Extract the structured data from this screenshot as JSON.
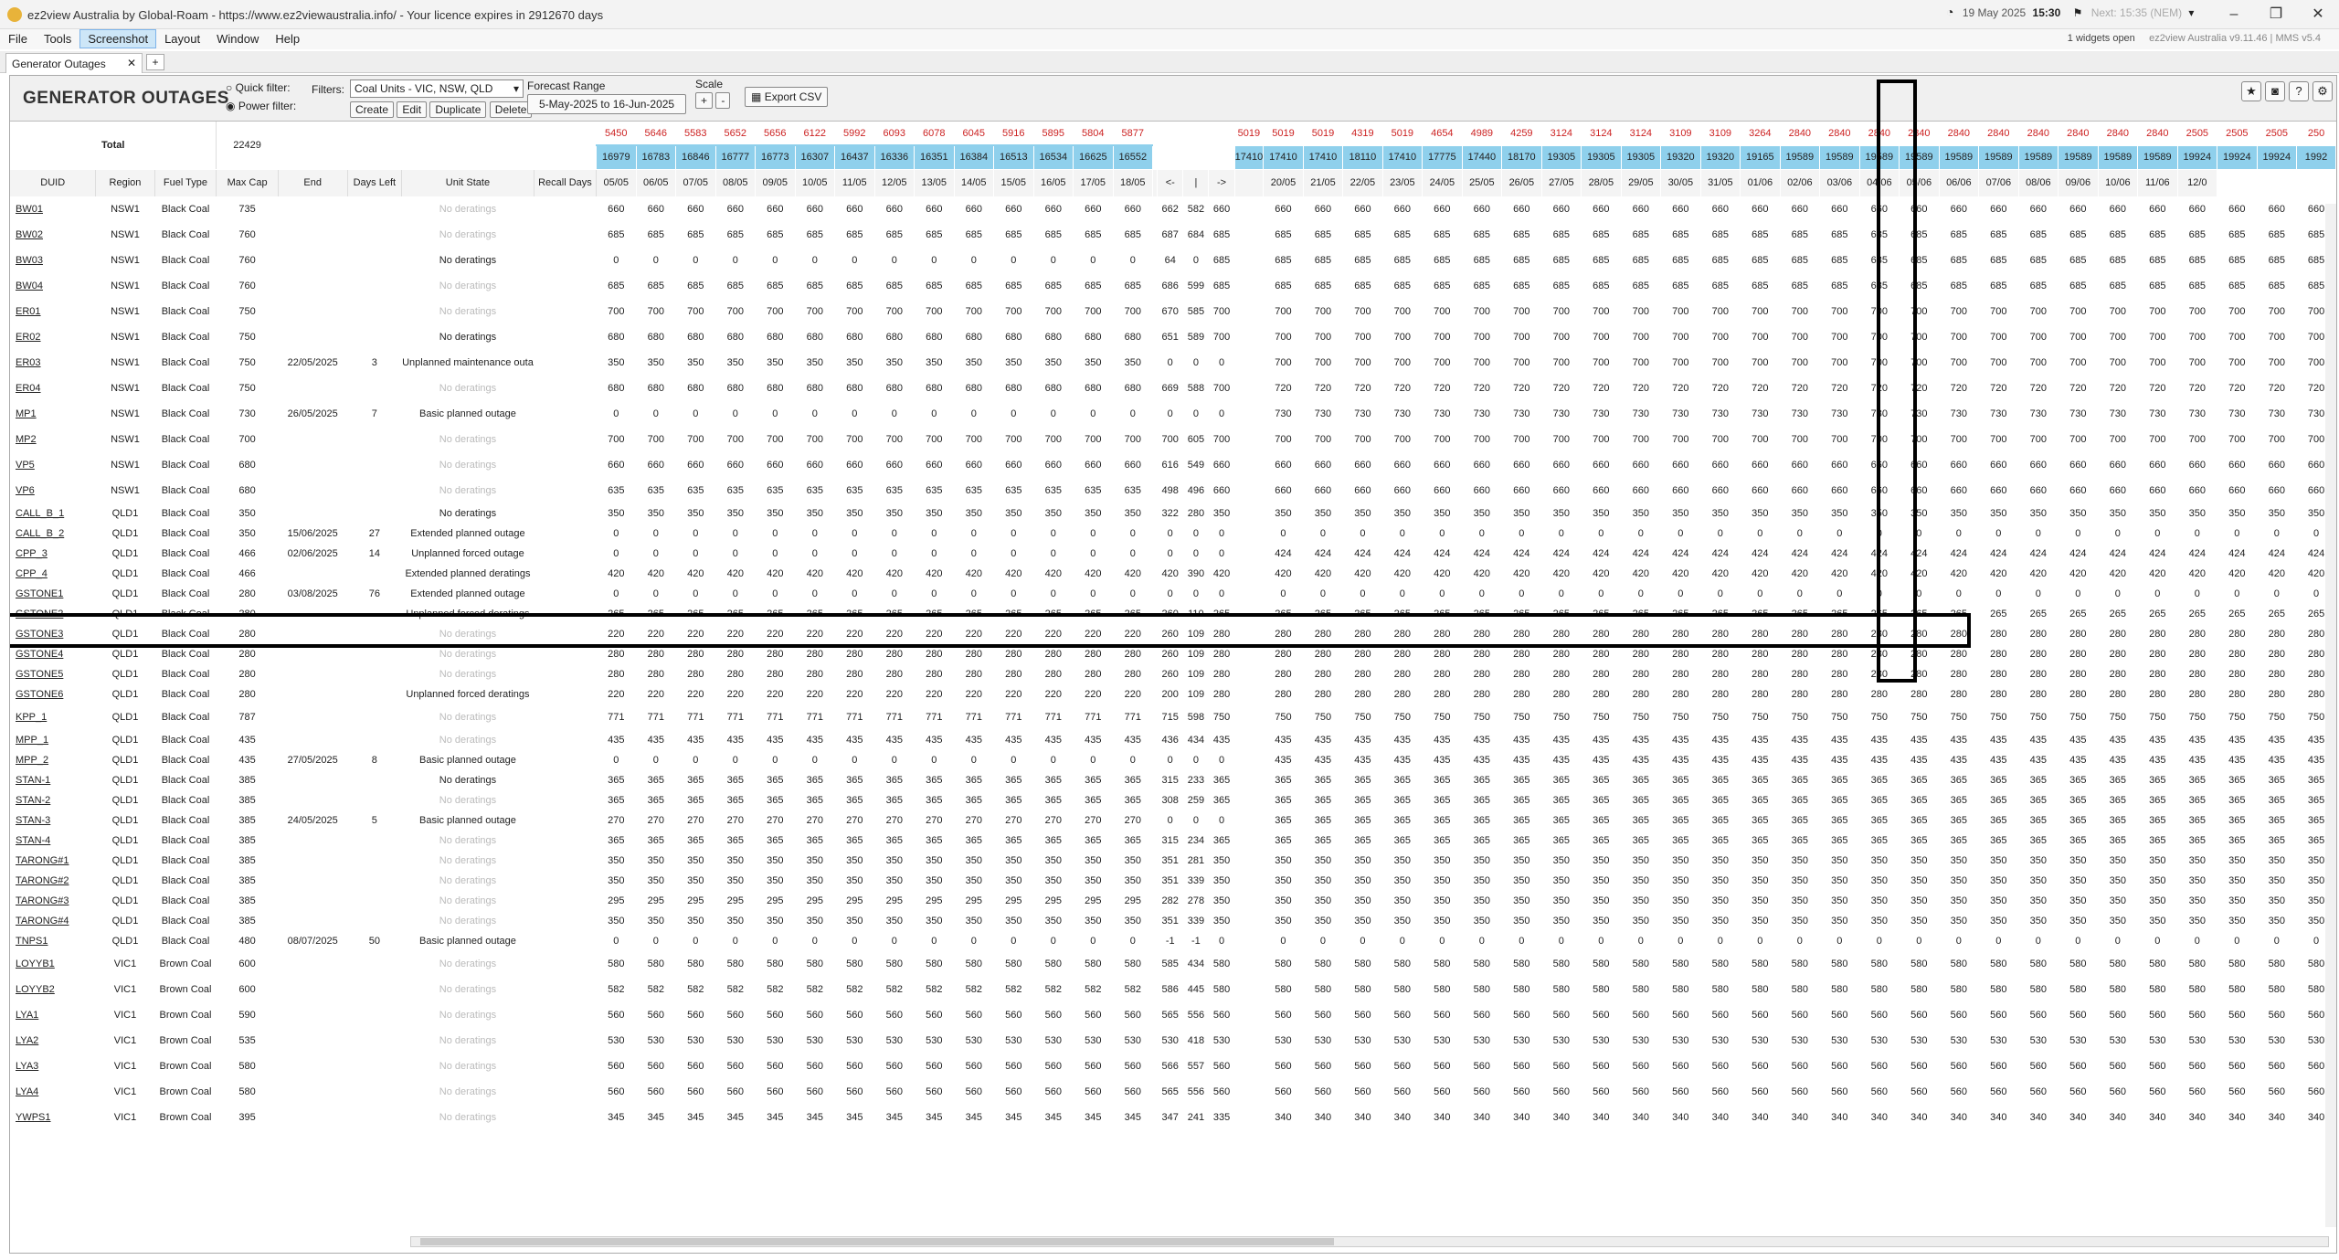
{
  "app": {
    "title": "ez2view Australia by Global-Roam - https://www.ez2viewaustralia.info/ - Your licence expires in 2912670 days",
    "clock_date": "19 May 2025",
    "clock_time": "15:30",
    "clock_next": "Next: 15:35 (NEM)",
    "widgets": "1 widgets open",
    "version": "ez2view Australia v9.11.46 | MMS v5.4"
  },
  "menu": [
    "File",
    "Tools",
    "Screenshot",
    "Layout",
    "Window",
    "Help"
  ],
  "tab": {
    "label": "Generator Outages",
    "close": "✕",
    "add": "+"
  },
  "toolbar": {
    "page_title": "GENERATOR OUTAGES",
    "quick_filter": "Quick filter:",
    "power_filter": "Power filter:",
    "filters_label": "Filters:",
    "filter_value": "Coal Units - VIC, NSW, QLD",
    "create": "Create",
    "edit": "Edit",
    "duplicate": "Duplicate",
    "delete": "Delete",
    "forecast_range_label": "Forecast Range",
    "forecast_range": "5-May-2025 to 16-Jun-2025",
    "scale_label": "Scale",
    "scale_plus": "+",
    "scale_minus": "-",
    "export": "Export CSV"
  },
  "colors": {
    "dark_green": "#37a04d",
    "light_green": "#9bd69d",
    "red": "#ee1c1c",
    "grey": "#d9d9d9",
    "teal": "#3b9ea2",
    "header_blue": "#8fd0ec"
  },
  "columns": [
    "DUID",
    "Region",
    "Fuel Type",
    "Max Cap",
    "End",
    "Days Left",
    "Unit State",
    "Recall Days"
  ],
  "total": {
    "label": "Total",
    "maxcap": "22429"
  },
  "total_top_a": [
    "5450",
    "5646",
    "5583",
    "5652",
    "5656",
    "6122",
    "5992",
    "6093",
    "6078",
    "6045",
    "5916",
    "5895",
    "5804",
    "5877"
  ],
  "total_top_b": [
    "",
    "",
    "",
    "5019"
  ],
  "total_top_c": [
    "5019",
    "5019",
    "4319",
    "5019",
    "4654",
    "4989",
    "4259",
    "3124",
    "3124",
    "3124",
    "3109",
    "3109",
    "3264",
    "2840",
    "2840",
    "2840",
    "2840",
    "2840",
    "2840",
    "2840",
    "2840",
    "2840",
    "2840",
    "2505",
    "2505",
    "2505",
    "250"
  ],
  "total_bot_a": [
    "16979",
    "16783",
    "16846",
    "16777",
    "16773",
    "16307",
    "16437",
    "16336",
    "16351",
    "16384",
    "16513",
    "16534",
    "16625",
    "16552"
  ],
  "total_bot_b": [
    "",
    "",
    "",
    "17410"
  ],
  "total_bot_c": [
    "17410",
    "17410",
    "18110",
    "17410",
    "17775",
    "17440",
    "18170",
    "19305",
    "19305",
    "19305",
    "19320",
    "19320",
    "19165",
    "19589",
    "19589",
    "19589",
    "19589",
    "19589",
    "19589",
    "19589",
    "19589",
    "19589",
    "19589",
    "19924",
    "19924",
    "19924",
    "1992"
  ],
  "dates_a": [
    "05/05",
    "06/05",
    "07/05",
    "08/05",
    "09/05",
    "10/05",
    "11/05",
    "12/05",
    "13/05",
    "14/05",
    "15/05",
    "16/05",
    "17/05",
    "18/05"
  ],
  "dates_b": [
    "<-",
    "|",
    "->"
  ],
  "dates_c": [
    "20/05",
    "21/05",
    "22/05",
    "23/05",
    "24/05",
    "25/05",
    "26/05",
    "27/05",
    "28/05",
    "29/05",
    "30/05",
    "31/05",
    "01/06",
    "02/06",
    "03/06",
    "04/06",
    "05/06",
    "06/06",
    "07/06",
    "08/06",
    "09/06",
    "10/06",
    "11/06",
    "12/0"
  ],
  "units": [
    {
      "duid": "BW01",
      "region": "NSW1",
      "fuel": "Black Coal",
      "cap": "735",
      "end": "",
      "days": "",
      "state": "No deratings",
      "nd": true,
      "a": "660",
      "ap": "g",
      "b": [
        "662",
        "582",
        "660"
      ],
      "c": "660",
      "cp": "L"
    },
    {
      "duid": "BW02",
      "region": "NSW1",
      "fuel": "Black Coal",
      "cap": "760",
      "end": "",
      "days": "",
      "state": "No deratings",
      "nd": true,
      "a": "685",
      "ap": "g",
      "b": [
        "687",
        "684",
        "685"
      ],
      "c": "685",
      "cp": "L"
    },
    {
      "duid": "BW03",
      "region": "NSW1",
      "fuel": "Black Coal",
      "cap": "760",
      "end": "",
      "days": "",
      "state": "No deratings",
      "nd": false,
      "a": "0",
      "ap": "r",
      "b": [
        "64",
        "0",
        "685"
      ],
      "c": "685",
      "cp": "L"
    },
    {
      "duid": "BW04",
      "region": "NSW1",
      "fuel": "Black Coal",
      "cap": "760",
      "end": "",
      "days": "",
      "state": "No deratings",
      "nd": true,
      "a": "685",
      "ap": "g",
      "b": [
        "686",
        "599",
        "685"
      ],
      "c": "685",
      "cp": "L"
    },
    {
      "duid": "ER01",
      "region": "NSW1",
      "fuel": "Black Coal",
      "cap": "750",
      "end": "",
      "days": "",
      "state": "No deratings",
      "nd": true,
      "a": "700",
      "ap": "g",
      "b": [
        "670",
        "585",
        "700"
      ],
      "c": "700",
      "cp": "L"
    },
    {
      "duid": "ER02",
      "region": "NSW1",
      "fuel": "Black Coal",
      "cap": "750",
      "end": "",
      "days": "",
      "state": "No deratings",
      "nd": false,
      "a": "680",
      "ap": "g",
      "b": [
        "651",
        "589",
        "700"
      ],
      "c": "700",
      "cp": "L"
    },
    {
      "duid": "ER03",
      "region": "NSW1",
      "fuel": "Black Coal",
      "cap": "750",
      "end": "22/05/2025",
      "days": "3",
      "state": "Unplanned maintenance outa",
      "nd": false,
      "a": "350",
      "ap": "g",
      "b": [
        "0",
        "0",
        "0"
      ],
      "c": "700",
      "cp": "L"
    },
    {
      "duid": "ER04",
      "region": "NSW1",
      "fuel": "Black Coal",
      "cap": "750",
      "end": "",
      "days": "",
      "state": "No deratings",
      "nd": true,
      "a": "680",
      "ap": "g",
      "b": [
        "669",
        "588",
        "700"
      ],
      "c": "720",
      "cp": "L"
    },
    {
      "duid": "MP1",
      "region": "NSW1",
      "fuel": "Black Coal",
      "cap": "730",
      "end": "26/05/2025",
      "days": "7",
      "state": "Basic planned outage",
      "nd": false,
      "a": "0",
      "ap": "z",
      "b": [
        "0",
        "0",
        "0"
      ],
      "c": "730",
      "cp": "L"
    },
    {
      "duid": "MP2",
      "region": "NSW1",
      "fuel": "Black Coal",
      "cap": "700",
      "end": "",
      "days": "",
      "state": "No deratings",
      "nd": true,
      "a": "700",
      "ap": "g",
      "b": [
        "700",
        "605",
        "700"
      ],
      "c": "700",
      "cp": "L"
    },
    {
      "duid": "VP5",
      "region": "NSW1",
      "fuel": "Black Coal",
      "cap": "680",
      "end": "",
      "days": "",
      "state": "No deratings",
      "nd": true,
      "a": "660",
      "ap": "g",
      "b": [
        "616",
        "549",
        "660"
      ],
      "c": "660",
      "cp": "L"
    },
    {
      "duid": "VP6",
      "region": "NSW1",
      "fuel": "Black Coal",
      "cap": "680",
      "end": "",
      "days": "",
      "state": "No deratings",
      "nd": true,
      "a": "635",
      "ap": "g",
      "b": [
        "498",
        "496",
        "660"
      ],
      "c": "660",
      "cp": "L"
    },
    {
      "duid": "CALL_B_1",
      "region": "QLD1",
      "fuel": "Black Coal",
      "cap": "350",
      "end": "",
      "days": "",
      "state": "No deratings",
      "nd": false,
      "a": "350",
      "ap": "g",
      "b": [
        "322",
        "280",
        "350"
      ],
      "c": "350",
      "cp": "L"
    },
    {
      "duid": "CALL_B_2",
      "region": "QLD1",
      "fuel": "Black Coal",
      "cap": "350",
      "end": "15/06/2025",
      "days": "27",
      "state": "Extended planned outage",
      "nd": false,
      "a": "0",
      "ap": "z",
      "b": [
        "0",
        "0",
        "0"
      ],
      "c": "0",
      "cp": "z"
    },
    {
      "duid": "CPP_3",
      "region": "QLD1",
      "fuel": "Black Coal",
      "cap": "466",
      "end": "02/06/2025",
      "days": "14",
      "state": "Unplanned forced outage",
      "nd": false,
      "a": "0",
      "ap": "r",
      "b": [
        "0",
        "0",
        "0"
      ],
      "c": "424",
      "cp": "L"
    },
    {
      "duid": "CPP_4",
      "region": "QLD1",
      "fuel": "Black Coal",
      "cap": "466",
      "end": "",
      "days": "",
      "state": "Extended planned deratings",
      "nd": false,
      "a": "420",
      "ap": "g",
      "b": [
        "420",
        "390",
        "420"
      ],
      "c": "420",
      "cp": "L"
    },
    {
      "duid": "GSTONE1",
      "region": "QLD1",
      "fuel": "Black Coal",
      "cap": "280",
      "end": "03/08/2025",
      "days": "76",
      "state": "Extended planned outage",
      "nd": false,
      "a": "0",
      "ap": "z",
      "b": [
        "0",
        "0",
        "0"
      ],
      "c": "0",
      "cp": "z"
    },
    {
      "duid": "GSTONE2",
      "region": "QLD1",
      "fuel": "Black Coal",
      "cap": "280",
      "end": "",
      "days": "",
      "state": "Unplanned forced deratings",
      "nd": false,
      "a": "265",
      "ap": "g",
      "b": [
        "260",
        "110",
        "265"
      ],
      "c": "265",
      "cp": "L"
    },
    {
      "duid": "GSTONE3",
      "region": "QLD1",
      "fuel": "Black Coal",
      "cap": "280",
      "end": "",
      "days": "",
      "state": "No deratings",
      "nd": true,
      "a": "220",
      "ap": "g",
      "b": [
        "260",
        "109",
        "280"
      ],
      "c": "280",
      "cp": "L"
    },
    {
      "duid": "GSTONE4",
      "region": "QLD1",
      "fuel": "Black Coal",
      "cap": "280",
      "end": "",
      "days": "",
      "state": "No deratings",
      "nd": true,
      "a": "280",
      "ap": "g",
      "b": [
        "260",
        "109",
        "280"
      ],
      "c": "280",
      "cp": "L"
    },
    {
      "duid": "GSTONE5",
      "region": "QLD1",
      "fuel": "Black Coal",
      "cap": "280",
      "end": "",
      "days": "",
      "state": "No deratings",
      "nd": true,
      "a": "280",
      "ap": "g",
      "b": [
        "260",
        "109",
        "280"
      ],
      "c": "280",
      "cp": "L"
    },
    {
      "duid": "GSTONE6",
      "region": "QLD1",
      "fuel": "Black Coal",
      "cap": "280",
      "end": "",
      "days": "",
      "state": "Unplanned forced deratings",
      "nd": false,
      "a": "220",
      "ap": "g",
      "b": [
        "200",
        "109",
        "280"
      ],
      "c": "280",
      "cp": "L"
    },
    {
      "duid": "KPP_1",
      "region": "QLD1",
      "fuel": "Black Coal",
      "cap": "787",
      "end": "",
      "days": "",
      "state": "No deratings",
      "nd": true,
      "a": "771",
      "ap": "g",
      "b": [
        "715",
        "598",
        "750"
      ],
      "c": "750",
      "cp": "L"
    },
    {
      "duid": "MPP_1",
      "region": "QLD1",
      "fuel": "Black Coal",
      "cap": "435",
      "end": "",
      "days": "",
      "state": "No deratings",
      "nd": true,
      "a": "435",
      "ap": "g",
      "b": [
        "436",
        "434",
        "435"
      ],
      "c": "435",
      "cp": "L"
    },
    {
      "duid": "MPP_2",
      "region": "QLD1",
      "fuel": "Black Coal",
      "cap": "435",
      "end": "27/05/2025",
      "days": "8",
      "state": "Basic planned outage",
      "nd": false,
      "a": "0",
      "ap": "z",
      "b": [
        "0",
        "0",
        "0"
      ],
      "c": "435",
      "cp": "L"
    },
    {
      "duid": "STAN-1",
      "region": "QLD1",
      "fuel": "Black Coal",
      "cap": "385",
      "end": "",
      "days": "",
      "state": "No deratings",
      "nd": false,
      "a": "365",
      "ap": "g",
      "b": [
        "315",
        "233",
        "365"
      ],
      "c": "365",
      "cp": "L"
    },
    {
      "duid": "STAN-2",
      "region": "QLD1",
      "fuel": "Black Coal",
      "cap": "385",
      "end": "",
      "days": "",
      "state": "No deratings",
      "nd": true,
      "a": "365",
      "ap": "g",
      "b": [
        "308",
        "259",
        "365"
      ],
      "c": "365",
      "cp": "L"
    },
    {
      "duid": "STAN-3",
      "region": "QLD1",
      "fuel": "Black Coal",
      "cap": "385",
      "end": "24/05/2025",
      "days": "5",
      "state": "Basic planned outage",
      "nd": false,
      "a": "270",
      "ap": "g",
      "b": [
        "0",
        "0",
        "0"
      ],
      "c": "365",
      "cp": "L"
    },
    {
      "duid": "STAN-4",
      "region": "QLD1",
      "fuel": "Black Coal",
      "cap": "385",
      "end": "",
      "days": "",
      "state": "No deratings",
      "nd": true,
      "a": "365",
      "ap": "g",
      "b": [
        "315",
        "234",
        "365"
      ],
      "c": "365",
      "cp": "L"
    },
    {
      "duid": "TARONG#1",
      "region": "QLD1",
      "fuel": "Black Coal",
      "cap": "385",
      "end": "",
      "days": "",
      "state": "No deratings",
      "nd": true,
      "a": "350",
      "ap": "g",
      "b": [
        "351",
        "281",
        "350"
      ],
      "c": "350",
      "cp": "L"
    },
    {
      "duid": "TARONG#2",
      "region": "QLD1",
      "fuel": "Black Coal",
      "cap": "385",
      "end": "",
      "days": "",
      "state": "No deratings",
      "nd": true,
      "a": "350",
      "ap": "g",
      "b": [
        "351",
        "339",
        "350"
      ],
      "c": "350",
      "cp": "L"
    },
    {
      "duid": "TARONG#3",
      "region": "QLD1",
      "fuel": "Black Coal",
      "cap": "385",
      "end": "",
      "days": "",
      "state": "No deratings",
      "nd": true,
      "a": "295",
      "ap": "g",
      "b": [
        "282",
        "278",
        "350"
      ],
      "c": "350",
      "cp": "L"
    },
    {
      "duid": "TARONG#4",
      "region": "QLD1",
      "fuel": "Black Coal",
      "cap": "385",
      "end": "",
      "days": "",
      "state": "No deratings",
      "nd": true,
      "a": "350",
      "ap": "g",
      "b": [
        "351",
        "339",
        "350"
      ],
      "c": "350",
      "cp": "L"
    },
    {
      "duid": "TNPS1",
      "region": "QLD1",
      "fuel": "Black Coal",
      "cap": "480",
      "end": "08/07/2025",
      "days": "50",
      "state": "Basic planned outage",
      "nd": false,
      "a": "0",
      "ap": "z",
      "b": [
        "-1",
        "-1",
        "0"
      ],
      "c": "0",
      "cp": "z"
    },
    {
      "duid": "LOYYB1",
      "region": "VIC1",
      "fuel": "Brown Coal",
      "cap": "600",
      "end": "",
      "days": "",
      "state": "No deratings",
      "nd": true,
      "a": "580",
      "ap": "g",
      "b": [
        "585",
        "434",
        "580"
      ],
      "c": "580",
      "cp": "L"
    },
    {
      "duid": "LOYYB2",
      "region": "VIC1",
      "fuel": "Brown Coal",
      "cap": "600",
      "end": "",
      "days": "",
      "state": "No deratings",
      "nd": true,
      "a": "582",
      "ap": "g",
      "b": [
        "586",
        "445",
        "580"
      ],
      "c": "580",
      "cp": "L"
    },
    {
      "duid": "LYA1",
      "region": "VIC1",
      "fuel": "Brown Coal",
      "cap": "590",
      "end": "",
      "days": "",
      "state": "No deratings",
      "nd": true,
      "a": "560",
      "ap": "g",
      "b": [
        "565",
        "556",
        "560"
      ],
      "c": "560",
      "cp": "L"
    },
    {
      "duid": "LYA2",
      "region": "VIC1",
      "fuel": "Brown Coal",
      "cap": "535",
      "end": "",
      "days": "",
      "state": "No deratings",
      "nd": true,
      "a": "530",
      "ap": "g",
      "b": [
        "530",
        "418",
        "530"
      ],
      "c": "530",
      "cp": "L"
    },
    {
      "duid": "LYA3",
      "region": "VIC1",
      "fuel": "Brown Coal",
      "cap": "580",
      "end": "",
      "days": "",
      "state": "No deratings",
      "nd": true,
      "a": "560",
      "ap": "g",
      "b": [
        "566",
        "557",
        "560"
      ],
      "c": "560",
      "cp": "L"
    },
    {
      "duid": "LYA4",
      "region": "VIC1",
      "fuel": "Brown Coal",
      "cap": "580",
      "end": "",
      "days": "",
      "state": "No deratings",
      "nd": true,
      "a": "560",
      "ap": "g",
      "b": [
        "565",
        "556",
        "560"
      ],
      "c": "560",
      "cp": "L"
    },
    {
      "duid": "YWPS1",
      "region": "VIC1",
      "fuel": "Brown Coal",
      "cap": "395",
      "end": "",
      "days": "",
      "state": "No deratings",
      "nd": true,
      "a": "345",
      "ap": "g",
      "b": [
        "347",
        "241",
        "335"
      ],
      "c": "340",
      "cp": "L"
    }
  ]
}
